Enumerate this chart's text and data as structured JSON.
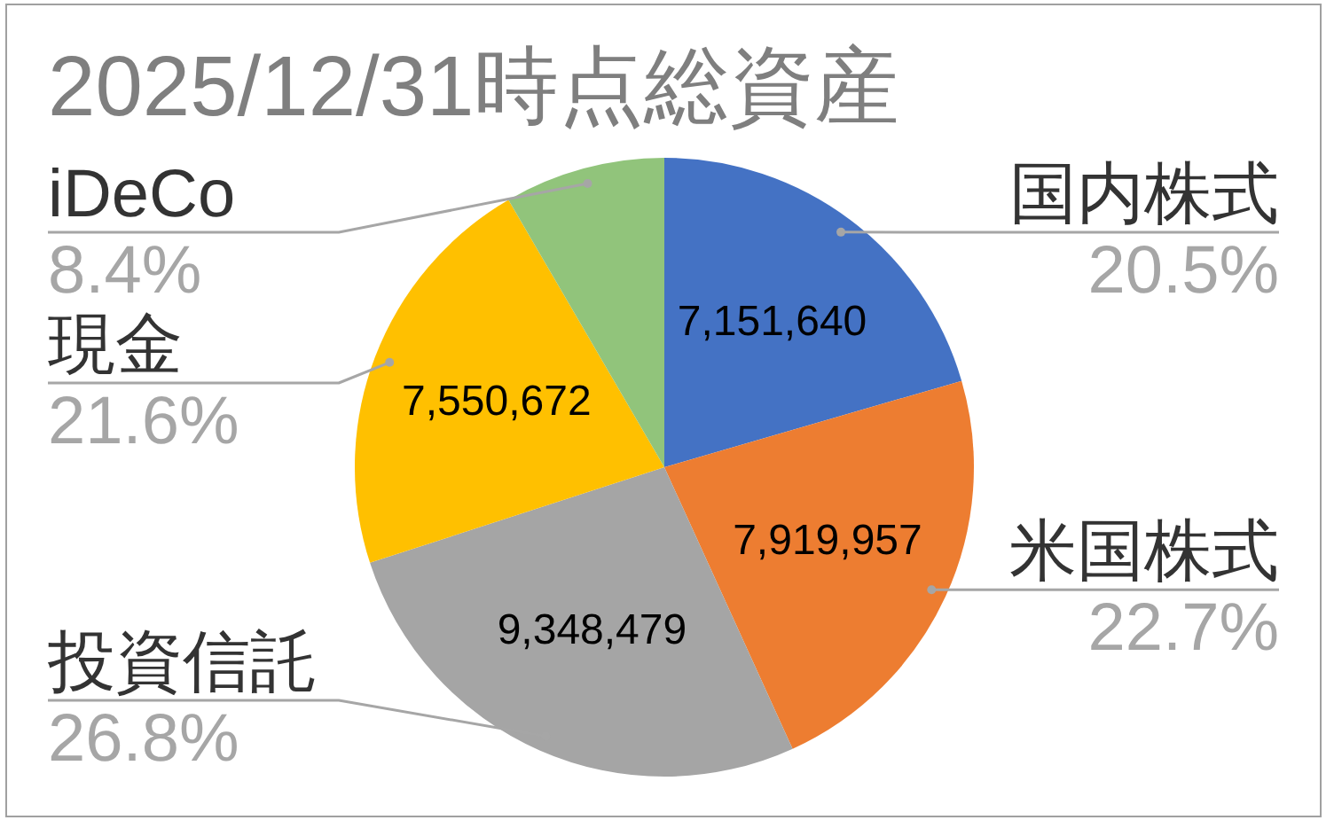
{
  "chart_data": {
    "type": "pie",
    "title": "2025/12/31時点総資産",
    "categories": [
      "国内株式",
      "米国株式",
      "投資信託",
      "現金",
      "iDeCo"
    ],
    "values": [
      20.5,
      22.7,
      26.8,
      21.6,
      8.4
    ],
    "colors": [
      "#4472c4",
      "#ed7d31",
      "#a5a5a5",
      "#ffc000",
      "#91c47b"
    ],
    "value_labels": [
      "20.5%",
      "22.7%",
      "26.8%",
      "21.6%",
      "8.4%"
    ],
    "annotations": [
      {
        "text": "7,151,640",
        "x": "国内株式"
      },
      {
        "text": "7,919,957",
        "x": "米国株式"
      },
      {
        "text": "9,348,479",
        "x": "投資信託"
      },
      {
        "text": "7,550,672",
        "x": "現金"
      }
    ],
    "legend": false
  }
}
